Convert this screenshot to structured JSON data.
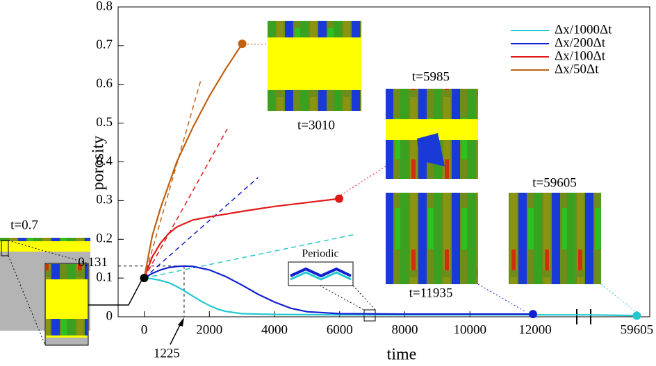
{
  "chart_data": {
    "type": "line",
    "x_label": "time",
    "y_label": "porosity",
    "xlim": [
      -800,
      60000
    ],
    "x_break": [
      13300,
      58200
    ],
    "ylim": [
      0,
      0.8
    ],
    "xticks": [
      0,
      2000,
      4000,
      6000,
      8000,
      10000,
      12000,
      59605
    ],
    "yticks": [
      0,
      0.1,
      0.2,
      0.3,
      0.4,
      0.5,
      0.6,
      0.7,
      0.8
    ],
    "legend_position": "upper right",
    "series": [
      {
        "name": "Δx/1000Δt",
        "color": "#22c8d0",
        "x": [
          0,
          250,
          500,
          750,
          1000,
          1250,
          1500,
          1750,
          2000,
          2250,
          2500,
          3000,
          4000,
          6000,
          8000,
          10000,
          12000,
          13300,
          58200,
          59605
        ],
        "values": [
          0.1,
          0.098,
          0.094,
          0.088,
          0.078,
          0.066,
          0.053,
          0.04,
          0.029,
          0.02,
          0.014,
          0.008,
          0.006,
          0.005,
          0.005,
          0.005,
          0.005,
          0.005,
          0.005,
          0.003
        ]
      },
      {
        "name": "Δx/200Δt",
        "color": "#1020d0",
        "x": [
          0,
          250,
          500,
          750,
          1000,
          1225,
          1500,
          2000,
          2500,
          3000,
          3500,
          4000,
          4500,
          5000,
          6000,
          8000,
          10000,
          11935
        ],
        "values": [
          0.1,
          0.112,
          0.121,
          0.127,
          0.13,
          0.131,
          0.13,
          0.121,
          0.104,
          0.082,
          0.058,
          0.038,
          0.022,
          0.013,
          0.008,
          0.007,
          0.007,
          0.007
        ]
      },
      {
        "name": "Δx/100Δt",
        "color": "#e01818",
        "x": [
          0,
          250,
          500,
          750,
          1000,
          1500,
          2000,
          2500,
          3000,
          4000,
          5000,
          5985
        ],
        "values": [
          0.1,
          0.155,
          0.19,
          0.215,
          0.232,
          0.25,
          0.258,
          0.265,
          0.272,
          0.285,
          0.295,
          0.305
        ]
      },
      {
        "name": "Δx/50Δt",
        "color": "#c06010",
        "x": [
          0,
          250,
          500,
          1000,
          1500,
          2000,
          2500,
          3010
        ],
        "values": [
          0.1,
          0.21,
          0.28,
          0.4,
          0.49,
          0.57,
          0.64,
          0.705
        ]
      }
    ],
    "tangents": [
      {
        "color": "#22c8d0",
        "x": [
          0,
          6440
        ],
        "values": [
          0.1,
          0.212
        ]
      },
      {
        "color": "#1020d0",
        "x": [
          0,
          3500
        ],
        "values": [
          0.1,
          0.36
        ]
      },
      {
        "color": "#e01818",
        "x": [
          0,
          2550
        ],
        "values": [
          0.1,
          0.485
        ]
      },
      {
        "color": "#c06010",
        "x": [
          0,
          1750
        ],
        "values": [
          0.1,
          0.614
        ]
      }
    ],
    "start_point": {
      "x": 0,
      "y": 0.1
    },
    "peak": {
      "x": 1225,
      "y": 0.131,
      "x_label": "1225",
      "y_label": "0.131"
    },
    "snapshots": [
      "t=0.7",
      "t=3010",
      "t=5985",
      "t=11935",
      "t=59605"
    ],
    "periodic_label": "Periodic"
  }
}
